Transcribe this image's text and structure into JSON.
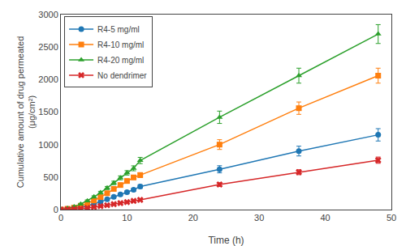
{
  "chart_data": {
    "type": "line",
    "xlabel": "Time (h)",
    "ylabel": "Cumulative amount of drug permeated\n(μg/cm²)",
    "xlim": [
      0,
      50
    ],
    "ylim": [
      0,
      3000
    ],
    "xticks": [
      0,
      10,
      20,
      30,
      40,
      50
    ],
    "yticks": [
      0,
      500,
      1000,
      1500,
      2000,
      2500,
      3000
    ],
    "grid": false,
    "legend": "upper left",
    "x": [
      0,
      1,
      2,
      3,
      4,
      5,
      6,
      7,
      8,
      9,
      10,
      11,
      12,
      24,
      36,
      48
    ],
    "series": [
      {
        "name": "R4-5 mg/ml",
        "marker": "circle",
        "values": [
          0,
          8,
          18,
          35,
          58,
          88,
          120,
          158,
          195,
          232,
          268,
          305,
          355,
          620,
          900,
          1150
        ],
        "yerr": [
          0,
          4,
          5,
          6,
          8,
          10,
          12,
          14,
          16,
          18,
          20,
          22,
          28,
          55,
          75,
          95
        ]
      },
      {
        "name": "R4-10 mg/ml",
        "marker": "square",
        "values": [
          0,
          12,
          30,
          58,
          95,
          140,
          192,
          252,
          318,
          378,
          440,
          495,
          530,
          1000,
          1560,
          2060
        ],
        "yerr": [
          0,
          5,
          7,
          9,
          12,
          14,
          17,
          20,
          24,
          27,
          30,
          33,
          38,
          75,
          95,
          115
        ]
      },
      {
        "name": "R4-20 mg/ml",
        "marker": "triangle-up",
        "values": [
          0,
          18,
          45,
          85,
          135,
          195,
          260,
          332,
          410,
          488,
          565,
          635,
          755,
          1420,
          2060,
          2700
        ],
        "yerr": [
          0,
          6,
          9,
          11,
          14,
          17,
          21,
          24,
          27,
          30,
          34,
          38,
          48,
          95,
          115,
          145
        ]
      },
      {
        "name": "No dendrimer",
        "marker": "x",
        "values": [
          0,
          4,
          9,
          16,
          26,
          38,
          52,
          67,
          84,
          100,
          116,
          133,
          150,
          385,
          575,
          760
        ],
        "yerr": [
          0,
          3,
          3,
          4,
          5,
          6,
          7,
          8,
          9,
          10,
          11,
          12,
          14,
          28,
          38,
          48
        ]
      }
    ]
  }
}
